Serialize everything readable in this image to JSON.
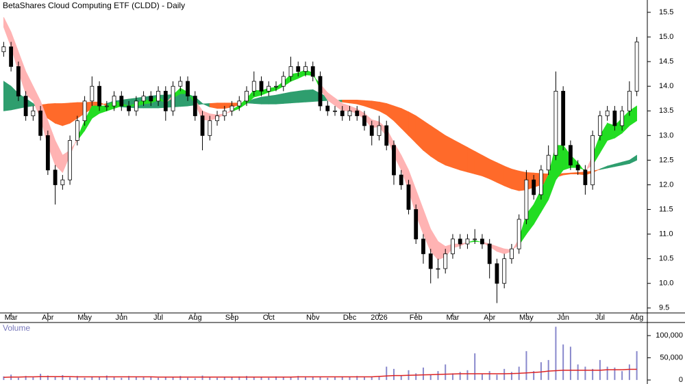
{
  "chart_data": [
    {
      "type": "candlestick",
      "title": "BetaShares Cloud Computing ETF (CLDD) - Daily",
      "categories": [
        null,
        "Mar",
        null,
        null,
        null,
        null,
        "Apr",
        null,
        null,
        null,
        null,
        "May",
        null,
        null,
        null,
        null,
        "Jun",
        null,
        null,
        null,
        null,
        "Jul",
        null,
        null,
        null,
        null,
        "Aug",
        null,
        null,
        null,
        null,
        "Sep",
        null,
        null,
        null,
        null,
        "Oct",
        null,
        null,
        null,
        null,
        null,
        "Nov",
        null,
        null,
        null,
        null,
        "Dec",
        null,
        null,
        null,
        "2026",
        null,
        null,
        null,
        null,
        "Feb",
        null,
        null,
        null,
        null,
        "Mar",
        null,
        null,
        null,
        null,
        "Apr",
        null,
        null,
        null,
        null,
        "May",
        null,
        null,
        null,
        null,
        "Jun",
        null,
        null,
        null,
        null,
        "Jul",
        null,
        null,
        null,
        null,
        "Aug"
      ],
      "open": [
        14.7,
        14.8,
        14.4,
        13.8,
        13.4,
        13.5,
        13.0,
        12.3,
        12.0,
        12.1,
        12.9,
        13.3,
        13.7,
        14.0,
        13.6,
        13.6,
        13.8,
        13.6,
        13.5,
        13.7,
        13.8,
        13.7,
        13.9,
        13.5,
        14.0,
        14.1,
        13.8,
        13.4,
        13.0,
        13.3,
        13.4,
        13.5,
        13.6,
        13.7,
        13.9,
        14.1,
        13.9,
        14.0,
        14.0,
        14.2,
        14.4,
        14.3,
        14.4,
        14.2,
        13.6,
        13.5,
        13.5,
        13.4,
        13.5,
        13.4,
        13.2,
        13.0,
        13.2,
        12.8,
        12.2,
        12.0,
        11.5,
        10.9,
        10.6,
        10.3,
        10.3,
        10.6,
        10.9,
        10.8,
        10.9,
        10.9,
        10.8,
        10.4,
        10.0,
        10.5,
        10.7,
        11.3,
        12.1,
        11.8,
        12.3,
        12.6,
        13.9,
        12.8,
        12.4,
        12.3,
        12.0,
        13.0,
        13.4,
        13.5,
        13.2,
        13.5,
        13.9
      ],
      "high": [
        14.9,
        14.9,
        14.5,
        13.9,
        13.6,
        13.6,
        13.1,
        12.4,
        12.2,
        13.0,
        13.4,
        13.8,
        14.2,
        14.1,
        13.7,
        13.9,
        13.9,
        13.7,
        13.8,
        13.9,
        13.9,
        14.0,
        14.0,
        14.1,
        14.2,
        14.2,
        13.9,
        13.5,
        13.4,
        13.5,
        13.6,
        13.7,
        13.8,
        14.0,
        14.3,
        14.2,
        14.1,
        14.1,
        14.3,
        14.6,
        14.5,
        14.5,
        14.5,
        14.3,
        13.7,
        13.6,
        13.6,
        13.6,
        13.6,
        13.5,
        13.3,
        13.4,
        13.3,
        12.9,
        12.3,
        12.1,
        11.6,
        11.0,
        10.7,
        10.5,
        10.7,
        11.0,
        11.0,
        11.0,
        11.1,
        11.0,
        10.9,
        10.5,
        10.6,
        10.8,
        11.4,
        12.3,
        12.2,
        12.4,
        12.8,
        14.3,
        14.0,
        12.9,
        12.5,
        12.4,
        13.1,
        13.5,
        13.6,
        13.6,
        13.6,
        14.1,
        15.0
      ],
      "low": [
        14.6,
        14.3,
        13.7,
        13.3,
        13.3,
        12.9,
        12.2,
        11.6,
        11.9,
        12.0,
        12.8,
        13.2,
        13.6,
        13.5,
        13.5,
        13.5,
        13.5,
        13.4,
        13.4,
        13.6,
        13.6,
        13.6,
        13.3,
        13.4,
        13.9,
        13.7,
        13.3,
        12.7,
        12.9,
        13.2,
        13.3,
        13.4,
        13.5,
        13.6,
        13.8,
        13.8,
        13.8,
        13.9,
        13.9,
        14.1,
        14.2,
        14.2,
        14.1,
        13.5,
        13.4,
        13.4,
        13.3,
        13.3,
        13.3,
        13.1,
        12.8,
        12.9,
        12.7,
        12.0,
        11.9,
        11.4,
        10.8,
        10.4,
        10.0,
        10.1,
        10.2,
        10.5,
        10.7,
        10.7,
        10.8,
        10.7,
        10.1,
        9.6,
        9.9,
        10.4,
        10.6,
        11.2,
        11.7,
        11.7,
        12.2,
        12.5,
        12.7,
        12.3,
        12.2,
        11.8,
        11.9,
        12.9,
        13.3,
        13.1,
        13.1,
        13.4,
        13.8
      ],
      "close": [
        14.8,
        14.4,
        13.8,
        13.4,
        13.5,
        13.0,
        12.3,
        12.0,
        12.1,
        12.9,
        13.3,
        13.7,
        14.0,
        13.6,
        13.6,
        13.8,
        13.6,
        13.5,
        13.7,
        13.8,
        13.7,
        13.9,
        13.5,
        14.0,
        14.1,
        13.8,
        13.4,
        13.0,
        13.3,
        13.4,
        13.5,
        13.6,
        13.7,
        13.9,
        14.1,
        13.9,
        14.0,
        14.0,
        14.2,
        14.4,
        14.3,
        14.4,
        14.2,
        13.6,
        13.5,
        13.5,
        13.4,
        13.5,
        13.4,
        13.2,
        13.0,
        13.2,
        12.8,
        12.2,
        12.0,
        11.5,
        10.9,
        10.6,
        10.3,
        10.3,
        10.6,
        10.9,
        10.8,
        10.9,
        10.9,
        10.8,
        10.4,
        10.0,
        10.5,
        10.7,
        11.3,
        12.1,
        11.8,
        12.3,
        12.6,
        13.9,
        12.8,
        12.4,
        12.3,
        12.0,
        13.0,
        13.4,
        13.5,
        13.2,
        13.5,
        13.9,
        14.9
      ],
      "up_color": "#ffffff",
      "down_color": "#000000",
      "ribbons": [
        {
          "colors": [
            "#2e9e6e",
            "#ff6a2a"
          ],
          "a": [
            14.1,
            14.0,
            13.85,
            13.75,
            13.65,
            13.5,
            13.35,
            13.25,
            13.2,
            13.25,
            13.35,
            13.45,
            13.55,
            13.62,
            13.65,
            13.7,
            13.72,
            13.74,
            13.76,
            13.78,
            13.8,
            13.82,
            13.82,
            13.83,
            13.85,
            13.84,
            13.78,
            13.65,
            13.58,
            13.55,
            13.55,
            13.58,
            13.62,
            13.68,
            13.74,
            13.78,
            13.8,
            13.82,
            13.85,
            13.88,
            13.9,
            13.92,
            13.93,
            13.85,
            13.78,
            13.72,
            13.68,
            13.66,
            13.64,
            13.6,
            13.55,
            13.5,
            13.42,
            13.3,
            13.15,
            13.0,
            12.85,
            12.7,
            12.58,
            12.48,
            12.4,
            12.35,
            12.3,
            12.26,
            12.22,
            12.18,
            12.12,
            12.05,
            11.98,
            11.92,
            11.88,
            11.9,
            11.95,
            12.0,
            12.05,
            12.15,
            12.2,
            12.22,
            12.22,
            12.2,
            12.25,
            12.32,
            12.38,
            12.42,
            12.46,
            12.5,
            12.6
          ],
          "b": [
            13.5,
            13.52,
            13.55,
            13.58,
            13.6,
            13.62,
            13.64,
            13.65,
            13.65,
            13.66,
            13.67,
            13.67,
            13.68,
            13.68,
            13.6,
            13.6,
            13.58,
            13.57,
            13.56,
            13.56,
            13.56,
            13.56,
            13.57,
            13.58,
            13.59,
            13.6,
            13.62,
            13.64,
            13.65,
            13.66,
            13.66,
            13.66,
            13.66,
            13.66,
            13.65,
            13.64,
            13.64,
            13.64,
            13.65,
            13.66,
            13.67,
            13.68,
            13.69,
            13.7,
            13.71,
            13.71,
            13.72,
            13.72,
            13.72,
            13.71,
            13.7,
            13.68,
            13.65,
            13.6,
            13.55,
            13.48,
            13.4,
            13.3,
            13.2,
            13.1,
            13.0,
            12.92,
            12.84,
            12.76,
            12.68,
            12.6,
            12.52,
            12.45,
            12.38,
            12.32,
            12.28,
            12.25,
            12.24,
            12.23,
            12.22,
            12.22,
            12.23,
            12.24,
            12.25,
            12.26,
            12.28,
            12.31,
            12.34,
            12.37,
            12.4,
            12.43,
            12.5
          ]
        },
        {
          "colors": [
            "#22dd22",
            "#ffb3b3"
          ],
          "a": [
            15.2,
            14.8,
            14.3,
            13.85,
            13.7,
            13.35,
            12.8,
            12.4,
            12.25,
            12.6,
            12.95,
            13.3,
            13.6,
            13.6,
            13.6,
            13.7,
            13.65,
            13.6,
            13.65,
            13.72,
            13.71,
            13.8,
            13.65,
            13.82,
            13.96,
            13.88,
            13.64,
            13.32,
            13.31,
            13.35,
            13.43,
            13.52,
            13.61,
            13.75,
            13.92,
            13.91,
            13.96,
            13.98,
            14.09,
            14.24,
            14.27,
            14.33,
            14.27,
            13.94,
            13.72,
            13.61,
            13.5,
            13.5,
            13.45,
            13.33,
            13.16,
            13.18,
            12.99,
            12.6,
            12.3,
            11.9,
            11.4,
            11.0,
            10.65,
            10.48,
            10.54,
            10.72,
            10.76,
            10.83,
            10.87,
            10.83,
            10.75,
            10.65,
            10.6,
            10.65,
            10.9,
            11.4,
            11.6,
            11.9,
            12.2,
            12.8,
            12.8,
            12.6,
            12.45,
            12.25,
            12.6,
            13.0,
            13.25,
            13.2,
            13.35,
            13.5,
            13.6
          ],
          "b": [
            15.4,
            15.1,
            14.7,
            14.3,
            14.0,
            13.7,
            13.3,
            12.9,
            12.6,
            12.7,
            12.9,
            13.1,
            13.35,
            13.45,
            13.5,
            13.55,
            13.6,
            13.6,
            13.6,
            13.64,
            13.66,
            13.72,
            13.68,
            13.76,
            13.85,
            13.85,
            13.72,
            13.5,
            13.44,
            13.42,
            13.44,
            13.49,
            13.55,
            13.65,
            13.78,
            13.82,
            13.88,
            13.92,
            14.0,
            14.1,
            14.16,
            14.23,
            14.22,
            14.04,
            13.87,
            13.76,
            13.65,
            13.6,
            13.54,
            13.45,
            13.32,
            13.28,
            13.14,
            12.86,
            12.6,
            12.3,
            11.9,
            11.5,
            11.1,
            10.85,
            10.75,
            10.8,
            10.8,
            10.83,
            10.85,
            10.84,
            10.8,
            10.75,
            10.7,
            10.68,
            10.78,
            11.0,
            11.2,
            11.45,
            11.7,
            12.1,
            12.3,
            12.35,
            12.35,
            12.3,
            12.4,
            12.65,
            12.9,
            12.95,
            13.05,
            13.2,
            13.3
          ]
        }
      ],
      "ylim": [
        9.4,
        15.75
      ],
      "yticks": [
        9.5,
        {
          "value": 10,
          "label": "10.0"
        },
        10.5,
        {
          "value": 11,
          "label": "11.0"
        },
        11.5,
        {
          "value": 12,
          "label": "12.0"
        },
        12.5,
        {
          "value": 13,
          "label": "13.0"
        },
        13.5,
        {
          "value": 14,
          "label": "14.0"
        },
        14.5,
        {
          "value": 15,
          "label": "15.0"
        },
        15.5
      ]
    },
    {
      "type": "bar",
      "title": "Volume",
      "color": "#8888cc",
      "average_color": "#dd2222",
      "values": [
        8000,
        12000,
        5000,
        9000,
        6000,
        14000,
        10000,
        7000,
        11000,
        6000,
        9000,
        5000,
        8000,
        7000,
        10000,
        6000,
        5000,
        9000,
        7000,
        6000,
        8000,
        5000,
        7000,
        6000,
        9000,
        5000,
        4000,
        10000,
        6000,
        5000,
        7000,
        6000,
        8000,
        9000,
        6000,
        7000,
        5000,
        8000,
        6000,
        7000,
        9000,
        6000,
        8000,
        7000,
        5000,
        6000,
        8000,
        7000,
        9000,
        6000,
        8000,
        7000,
        30000,
        25000,
        10000,
        22000,
        15000,
        28000,
        12000,
        20000,
        35000,
        15000,
        18000,
        22000,
        60000,
        14000,
        20000,
        12000,
        25000,
        18000,
        30000,
        65000,
        20000,
        40000,
        45000,
        120000,
        80000,
        75000,
        35000,
        30000,
        25000,
        45000,
        30000,
        28000,
        20000,
        35000,
        65000
      ],
      "average": [
        6000,
        6500,
        6500,
        7000,
        7000,
        7500,
        7500,
        7500,
        7500,
        7500,
        7000,
        7000,
        7000,
        7000,
        7000,
        7000,
        7000,
        7000,
        7000,
        7000,
        7000,
        6500,
        6500,
        6500,
        6500,
        6500,
        6500,
        6500,
        6500,
        6500,
        6500,
        6500,
        6500,
        6500,
        6500,
        6500,
        6500,
        6500,
        6500,
        6500,
        7000,
        7000,
        7000,
        7000,
        7000,
        7000,
        7000,
        7000,
        7000,
        7000,
        7000,
        8000,
        9000,
        10000,
        10000,
        10500,
        11000,
        11500,
        12000,
        12500,
        13000,
        13500,
        14000,
        14000,
        14000,
        14000,
        14000,
        14000,
        14000,
        14500,
        15000,
        16000,
        17000,
        18000,
        20000,
        21000,
        22000,
        22000,
        22000,
        22000,
        22000,
        22000,
        23000,
        23000,
        23000,
        24000,
        24000
      ],
      "ylim": [
        -6000,
        128000
      ],
      "yticks": [
        0,
        {
          "value": 50000,
          "label": "50,000"
        },
        {
          "value": 100000,
          "label": "100,000"
        }
      ]
    }
  ]
}
